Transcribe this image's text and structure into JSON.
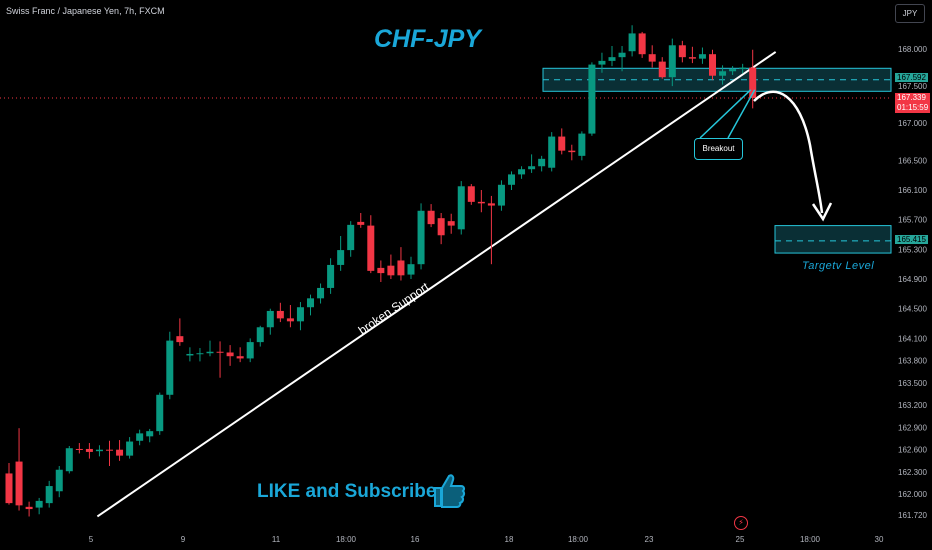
{
  "header": {
    "symbol_title": "Swiss Franc / Japanese Yen, 7h, FXCM",
    "currency_button": "JPY"
  },
  "annotations": {
    "title": "CHF-JPY",
    "support_label": "broken Support",
    "breakout_label": "Breakout",
    "target_label": "Targetv Level",
    "cta": "LIKE and Subscribe"
  },
  "icons": {
    "cta_icon": "thumbs-up-icon",
    "events_icon": "lightning-icon"
  },
  "price_tags": {
    "zone_price": "167.592",
    "current_price": "167.339",
    "countdown": "01:15:59",
    "target_price": "165.415"
  },
  "colors": {
    "background": "#000000",
    "bullish": "#089981",
    "bearish": "#f23645",
    "accent": "#1aa7d8",
    "zone_border": "#26c6da",
    "support_line": "#ffffff",
    "axis_text": "#b2b5be"
  },
  "chart_data": {
    "type": "candlestick",
    "title": "CHF-JPY",
    "x_tick_labels": [
      "5",
      "9",
      "11",
      "18:00",
      "16",
      "18",
      "18:00",
      "23",
      "25",
      "18:00",
      "30"
    ],
    "y_tick_labels": [
      "168.000",
      "167.500",
      "167.000",
      "166.500",
      "166.100",
      "165.700",
      "165.300",
      "164.900",
      "164.500",
      "164.100",
      "163.800",
      "163.500",
      "163.200",
      "162.900",
      "162.600",
      "162.300",
      "162.000",
      "161.720"
    ],
    "ylim": [
      161.62,
      168.35
    ],
    "grid": false,
    "resistance_zone": [
      167.43,
      167.74
    ],
    "target_zone": [
      165.25,
      165.62
    ],
    "target_level": 165.415,
    "last_price": 167.339,
    "support_trendline": {
      "start": [
        "5",
        161.7
      ],
      "end": [
        "25",
        167.88
      ]
    },
    "candles": [
      {
        "o": 162.28,
        "h": 162.42,
        "l": 161.86,
        "c": 161.88
      },
      {
        "o": 162.44,
        "h": 162.89,
        "l": 161.78,
        "c": 161.85
      },
      {
        "o": 161.83,
        "h": 161.9,
        "l": 161.7,
        "c": 161.8
      },
      {
        "o": 161.82,
        "h": 161.95,
        "l": 161.73,
        "c": 161.91
      },
      {
        "o": 161.88,
        "h": 162.18,
        "l": 161.82,
        "c": 162.11
      },
      {
        "o": 162.04,
        "h": 162.38,
        "l": 161.96,
        "c": 162.33
      },
      {
        "o": 162.31,
        "h": 162.65,
        "l": 162.28,
        "c": 162.62
      },
      {
        "o": 162.61,
        "h": 162.69,
        "l": 162.55,
        "c": 162.6
      },
      {
        "o": 162.61,
        "h": 162.69,
        "l": 162.48,
        "c": 162.57
      },
      {
        "o": 162.58,
        "h": 162.66,
        "l": 162.51,
        "c": 162.6
      },
      {
        "o": 162.6,
        "h": 162.72,
        "l": 162.38,
        "c": 162.59
      },
      {
        "o": 162.6,
        "h": 162.73,
        "l": 162.45,
        "c": 162.52
      },
      {
        "o": 162.52,
        "h": 162.77,
        "l": 162.48,
        "c": 162.71
      },
      {
        "o": 162.72,
        "h": 162.87,
        "l": 162.66,
        "c": 162.82
      },
      {
        "o": 162.78,
        "h": 162.88,
        "l": 162.7,
        "c": 162.85
      },
      {
        "o": 162.85,
        "h": 163.37,
        "l": 162.8,
        "c": 163.34
      },
      {
        "o": 163.34,
        "h": 164.19,
        "l": 163.28,
        "c": 164.07
      },
      {
        "o": 164.13,
        "h": 164.37,
        "l": 164.0,
        "c": 164.05
      },
      {
        "o": 163.87,
        "h": 163.98,
        "l": 163.79,
        "c": 163.89
      },
      {
        "o": 163.89,
        "h": 163.97,
        "l": 163.79,
        "c": 163.9
      },
      {
        "o": 163.9,
        "h": 164.07,
        "l": 163.86,
        "c": 163.92
      },
      {
        "o": 163.92,
        "h": 164.06,
        "l": 163.57,
        "c": 163.91
      },
      {
        "o": 163.91,
        "h": 164.01,
        "l": 163.73,
        "c": 163.86
      },
      {
        "o": 163.86,
        "h": 163.98,
        "l": 163.78,
        "c": 163.83
      },
      {
        "o": 163.83,
        "h": 164.1,
        "l": 163.78,
        "c": 164.05
      },
      {
        "o": 164.05,
        "h": 164.27,
        "l": 163.99,
        "c": 164.25
      },
      {
        "o": 164.25,
        "h": 164.5,
        "l": 164.15,
        "c": 164.47
      },
      {
        "o": 164.47,
        "h": 164.58,
        "l": 164.32,
        "c": 164.37
      },
      {
        "o": 164.37,
        "h": 164.55,
        "l": 164.25,
        "c": 164.33
      },
      {
        "o": 164.33,
        "h": 164.59,
        "l": 164.21,
        "c": 164.52
      },
      {
        "o": 164.52,
        "h": 164.69,
        "l": 164.41,
        "c": 164.64
      },
      {
        "o": 164.64,
        "h": 164.84,
        "l": 164.57,
        "c": 164.78
      },
      {
        "o": 164.78,
        "h": 165.18,
        "l": 164.7,
        "c": 165.09
      },
      {
        "o": 165.09,
        "h": 165.48,
        "l": 165.01,
        "c": 165.29
      },
      {
        "o": 165.29,
        "h": 165.68,
        "l": 165.2,
        "c": 165.63
      },
      {
        "o": 165.67,
        "h": 165.79,
        "l": 165.59,
        "c": 165.63
      },
      {
        "o": 165.62,
        "h": 165.76,
        "l": 164.98,
        "c": 165.01
      },
      {
        "o": 165.05,
        "h": 165.15,
        "l": 164.86,
        "c": 164.98
      },
      {
        "o": 165.08,
        "h": 165.23,
        "l": 164.9,
        "c": 164.95
      },
      {
        "o": 165.15,
        "h": 165.33,
        "l": 164.88,
        "c": 164.95
      },
      {
        "o": 164.96,
        "h": 165.2,
        "l": 164.9,
        "c": 165.1
      },
      {
        "o": 165.1,
        "h": 165.92,
        "l": 165.03,
        "c": 165.82
      },
      {
        "o": 165.82,
        "h": 165.91,
        "l": 165.6,
        "c": 165.64
      },
      {
        "o": 165.72,
        "h": 165.79,
        "l": 165.37,
        "c": 165.49
      },
      {
        "o": 165.68,
        "h": 165.78,
        "l": 165.51,
        "c": 165.62
      },
      {
        "o": 165.57,
        "h": 166.22,
        "l": 165.5,
        "c": 166.15
      },
      {
        "o": 166.15,
        "h": 166.18,
        "l": 165.9,
        "c": 165.94
      },
      {
        "o": 165.94,
        "h": 166.1,
        "l": 165.8,
        "c": 165.92
      },
      {
        "o": 165.92,
        "h": 166.02,
        "l": 165.1,
        "c": 165.89
      },
      {
        "o": 165.89,
        "h": 166.23,
        "l": 165.82,
        "c": 166.17
      },
      {
        "o": 166.17,
        "h": 166.35,
        "l": 166.1,
        "c": 166.31
      },
      {
        "o": 166.31,
        "h": 166.42,
        "l": 166.25,
        "c": 166.38
      },
      {
        "o": 166.38,
        "h": 166.58,
        "l": 166.33,
        "c": 166.42
      },
      {
        "o": 166.42,
        "h": 166.56,
        "l": 166.35,
        "c": 166.52
      },
      {
        "o": 166.4,
        "h": 166.88,
        "l": 166.35,
        "c": 166.82
      },
      {
        "o": 166.82,
        "h": 166.93,
        "l": 166.58,
        "c": 166.63
      },
      {
        "o": 166.63,
        "h": 166.71,
        "l": 166.5,
        "c": 166.61
      },
      {
        "o": 166.56,
        "h": 166.89,
        "l": 166.5,
        "c": 166.86
      },
      {
        "o": 166.86,
        "h": 167.82,
        "l": 166.83,
        "c": 167.79
      },
      {
        "o": 167.79,
        "h": 167.95,
        "l": 167.68,
        "c": 167.84
      },
      {
        "o": 167.84,
        "h": 168.04,
        "l": 167.77,
        "c": 167.89
      },
      {
        "o": 167.89,
        "h": 168.04,
        "l": 167.7,
        "c": 167.95
      },
      {
        "o": 167.97,
        "h": 168.32,
        "l": 167.9,
        "c": 168.21
      },
      {
        "o": 168.21,
        "h": 168.23,
        "l": 167.88,
        "c": 167.93
      },
      {
        "o": 167.93,
        "h": 168.05,
        "l": 167.75,
        "c": 167.83
      },
      {
        "o": 167.83,
        "h": 167.89,
        "l": 167.6,
        "c": 167.62
      },
      {
        "o": 167.62,
        "h": 168.14,
        "l": 167.5,
        "c": 168.05
      },
      {
        "o": 168.05,
        "h": 168.11,
        "l": 167.82,
        "c": 167.89
      },
      {
        "o": 167.89,
        "h": 168.03,
        "l": 167.81,
        "c": 167.87
      },
      {
        "o": 167.87,
        "h": 168.02,
        "l": 167.8,
        "c": 167.93
      },
      {
        "o": 167.93,
        "h": 167.99,
        "l": 167.58,
        "c": 167.64
      },
      {
        "o": 167.64,
        "h": 167.78,
        "l": 167.52,
        "c": 167.7
      },
      {
        "o": 167.7,
        "h": 167.77,
        "l": 167.65,
        "c": 167.73
      },
      {
        "o": 167.73,
        "h": 167.8,
        "l": 167.67,
        "c": 167.75
      },
      {
        "o": 167.75,
        "h": 167.99,
        "l": 167.2,
        "c": 167.34
      }
    ]
  }
}
